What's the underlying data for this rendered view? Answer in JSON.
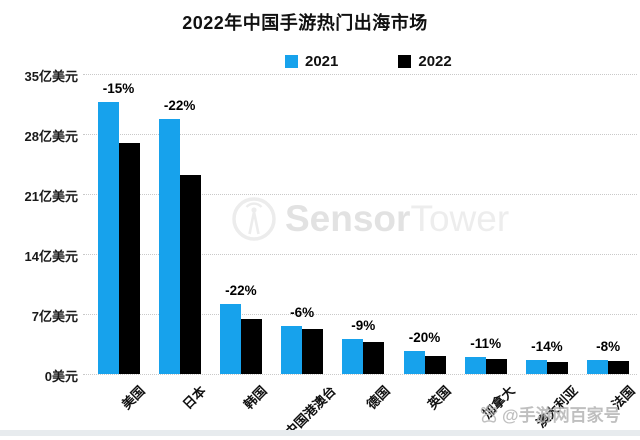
{
  "chart_data": {
    "type": "bar",
    "title": "2022年中国手游热门出海市场",
    "unit": "亿美元",
    "categories": [
      "美国",
      "日本",
      "韩国",
      "中国港澳台",
      "德国",
      "英国",
      "加拿大",
      "澳大利亚",
      "法国"
    ],
    "series": [
      {
        "name": "2021",
        "color": "#17a2ec",
        "values": [
          31.7,
          29.8,
          8.2,
          5.6,
          4.1,
          2.7,
          2.0,
          1.65,
          1.6
        ]
      },
      {
        "name": "2022",
        "color": "#000000",
        "values": [
          27.0,
          23.2,
          6.4,
          5.25,
          3.7,
          2.15,
          1.78,
          1.42,
          1.47
        ]
      }
    ],
    "change_labels": [
      "-15%",
      "-22%",
      "-22%",
      "-6%",
      "-9%",
      "-20%",
      "-11%",
      "-14%",
      "-8%"
    ],
    "y_ticks": [
      {
        "value": 35,
        "label": "35亿美元"
      },
      {
        "value": 28,
        "label": "28亿美元"
      },
      {
        "value": 21,
        "label": "21亿美元"
      },
      {
        "value": 14,
        "label": "14亿美元"
      },
      {
        "value": 7,
        "label": "7亿美元"
      },
      {
        "value": 0,
        "label": "0美元"
      }
    ],
    "ylim": [
      0,
      35
    ],
    "grid": "horizontal-dotted",
    "legend_position": "top-center"
  },
  "watermarks": {
    "brand": {
      "icon": "sensortower-logo-icon",
      "name_bold": "Sensor",
      "name_light": "Tower"
    },
    "source": {
      "icon": "paw-icon",
      "text": "@手游网百家号"
    }
  }
}
